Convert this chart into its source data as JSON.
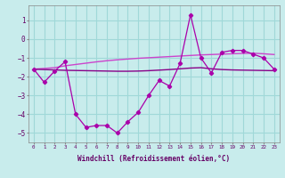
{
  "hours": [
    0,
    1,
    2,
    3,
    4,
    5,
    6,
    7,
    8,
    9,
    10,
    11,
    12,
    13,
    14,
    15,
    16,
    17,
    18,
    19,
    20,
    21,
    22,
    23
  ],
  "windchill": [
    -1.6,
    -2.3,
    -1.7,
    -1.2,
    -4.0,
    -4.7,
    -4.6,
    -4.6,
    -5.0,
    -4.4,
    -3.9,
    -3.0,
    -2.2,
    -2.5,
    -1.3,
    1.3,
    -1.0,
    -1.8,
    -0.7,
    -0.6,
    -0.6,
    -0.8,
    -1.0,
    -1.6
  ],
  "smooth1": [
    -1.6,
    -1.56,
    -1.52,
    -1.42,
    -1.35,
    -1.28,
    -1.21,
    -1.15,
    -1.1,
    -1.06,
    -1.02,
    -0.99,
    -0.96,
    -0.93,
    -0.9,
    -0.87,
    -0.84,
    -0.82,
    -0.8,
    -0.78,
    -0.76,
    -0.75,
    -0.78,
    -0.82
  ],
  "smooth2": [
    -1.6,
    -1.62,
    -1.64,
    -1.66,
    -1.67,
    -1.68,
    -1.69,
    -1.7,
    -1.71,
    -1.71,
    -1.7,
    -1.68,
    -1.65,
    -1.62,
    -1.58,
    -1.54,
    -1.52,
    -1.58,
    -1.62,
    -1.64,
    -1.65,
    -1.66,
    -1.67,
    -1.68
  ],
  "line_color": "#aa00aa",
  "smooth_color1": "#cc44cc",
  "smooth_color2": "#880088",
  "bg_color": "#c8ecec",
  "grid_color": "#a0d8d8",
  "xlabel": "Windchill (Refroidissement éolien,°C)",
  "ylim": [
    -5.5,
    1.8
  ],
  "xlim": [
    -0.5,
    23.5
  ]
}
